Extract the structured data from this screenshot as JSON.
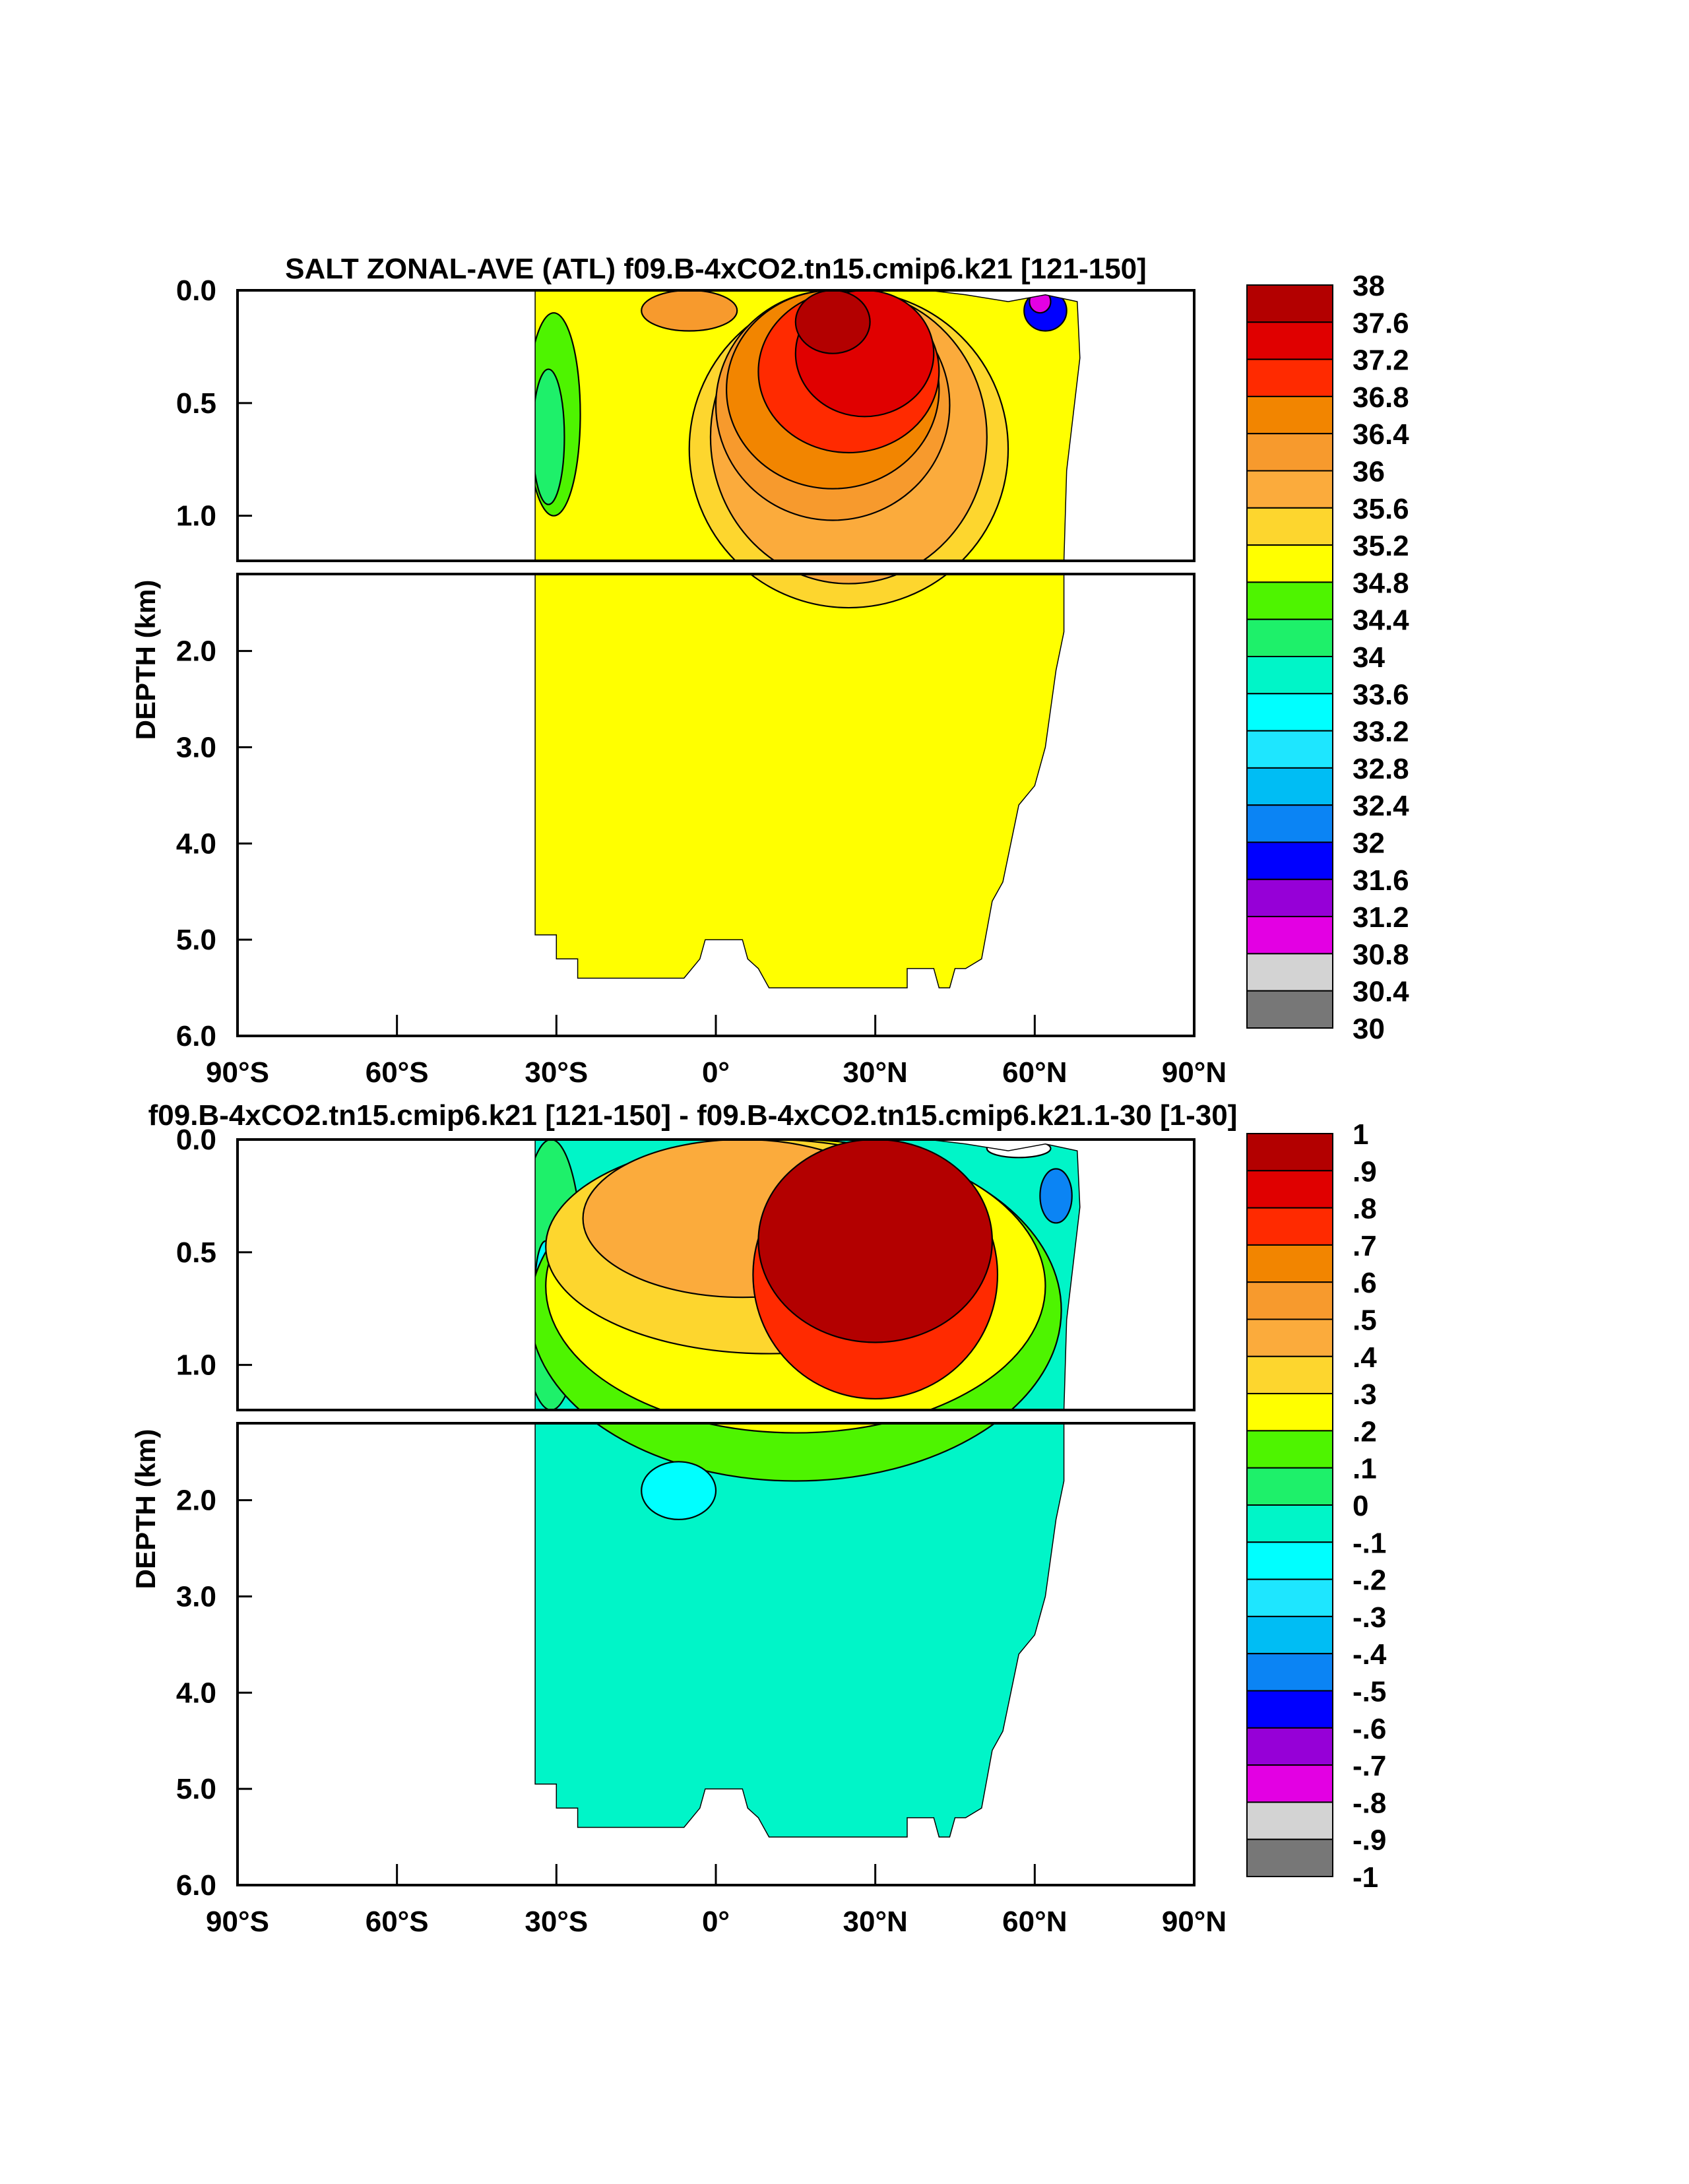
{
  "chart_data": [
    {
      "type": "contour",
      "title": "SALT ZONAL-AVE (ATL) f09.B-4xCO2.tn15.cmip6.k21 [121-150]",
      "xlabel": "",
      "ylabel": "DEPTH (km)",
      "x_ticks": [
        "90°S",
        "60°S",
        "30°S",
        "0°",
        "30°N",
        "60°N",
        "90°N"
      ],
      "upper_y_ticks": [
        "0.0",
        "0.5",
        "1.0"
      ],
      "lower_y_ticks": [
        "2.0",
        "3.0",
        "4.0",
        "5.0",
        "6.0"
      ],
      "xlim": [
        -90,
        90
      ],
      "ylim_km": [
        0,
        6
      ],
      "levels": [
        "38",
        "37.6",
        "37.2",
        "36.8",
        "36.4",
        "36",
        "35.6",
        "35.2",
        "34.8",
        "34.4",
        "34",
        "33.6",
        "33.2",
        "32.8",
        "32.4",
        "32",
        "31.6",
        "31.2",
        "30.8",
        "30.4",
        "30"
      ],
      "colors": [
        "#b30000",
        "#e00000",
        "#ff2a00",
        "#f28500",
        "#f79a2d",
        "#fbab3c",
        "#fdd62e",
        "#ffff00",
        "#4ef400",
        "#1ef06a",
        "#00f5c8",
        "#00ffff",
        "#1ee6ff",
        "#00bdf4",
        "#0b84f4",
        "#0000ff",
        "#9600d7",
        "#e300e3",
        "#d3d3d3",
        "#777777"
      ],
      "fields": {
        "background": "#ffff00",
        "blobs": [
          {
            "lat": -30.5,
            "depth": 0.55,
            "r_lat": 5,
            "r_depth": 0.45,
            "color": "#4ef400"
          },
          {
            "lat": -31.5,
            "depth": 0.65,
            "r_lat": 3,
            "r_depth": 0.3,
            "color": "#1ef06a"
          },
          {
            "lat": 25,
            "depth": 0.55,
            "r_lat": 30,
            "r_depth": 1.0,
            "color": "#fdd62e"
          },
          {
            "lat": 25,
            "depth": 0.5,
            "r_lat": 26,
            "r_depth": 0.8,
            "color": "#fbab3c"
          },
          {
            "lat": 22,
            "depth": 0.42,
            "r_lat": 22,
            "r_depth": 0.6,
            "color": "#f79a2d"
          },
          {
            "lat": 22,
            "depth": 0.38,
            "r_lat": 20,
            "r_depth": 0.5,
            "color": "#f28500"
          },
          {
            "lat": 25,
            "depth": 0.32,
            "r_lat": 17,
            "r_depth": 0.4,
            "color": "#ff2a00"
          },
          {
            "lat": 28,
            "depth": 0.26,
            "r_lat": 13,
            "r_depth": 0.3,
            "color": "#e00000"
          },
          {
            "lat": 22,
            "depth": 0.1,
            "r_lat": 7,
            "r_depth": 0.18,
            "color": "#b30000"
          },
          {
            "lat": -5,
            "depth": 0.06,
            "r_lat": 9,
            "r_depth": 0.12,
            "color": "#f79a2d"
          },
          {
            "lat": 62,
            "depth": 0.08,
            "r_lat": 4,
            "r_depth": 0.1,
            "color": "#0000ff"
          },
          {
            "lat": 61,
            "depth": 0.05,
            "r_lat": 2,
            "r_depth": 0.05,
            "color": "#e300e3"
          }
        ]
      }
    },
    {
      "type": "contour",
      "title": "f09.B-4xCO2.tn15.cmip6.k21 [121-150] - f09.B-4xCO2.tn15.cmip6.k21.1-30 [1-30]",
      "xlabel": "",
      "ylabel": "DEPTH (km)",
      "x_ticks": [
        "90°S",
        "60°S",
        "30°S",
        "0°",
        "30°N",
        "60°N",
        "90°N"
      ],
      "upper_y_ticks": [
        "0.0",
        "0.5",
        "1.0"
      ],
      "lower_y_ticks": [
        "2.0",
        "3.0",
        "4.0",
        "5.0",
        "6.0"
      ],
      "xlim": [
        -90,
        90
      ],
      "ylim_km": [
        0,
        6
      ],
      "levels": [
        "1",
        ".9",
        ".8",
        ".7",
        ".6",
        ".5",
        ".4",
        ".3",
        ".2",
        ".1",
        "0",
        "-.1",
        "-.2",
        "-.3",
        "-.4",
        "-.5",
        "-.6",
        "-.7",
        "-.8",
        "-.9",
        "-1"
      ],
      "colors": [
        "#b30000",
        "#e00000",
        "#ff2a00",
        "#f28500",
        "#f79a2d",
        "#fbab3c",
        "#fdd62e",
        "#ffff00",
        "#4ef400",
        "#1ef06a",
        "#00f5c8",
        "#00ffff",
        "#1ee6ff",
        "#00bdf4",
        "#0b84f4",
        "#0000ff",
        "#9600d7",
        "#e300e3",
        "#d3d3d3",
        "#777777"
      ],
      "fields": {
        "background": "#00f5c8",
        "blobs": [
          {
            "lat": -31,
            "depth": 0.5,
            "r_lat": 6,
            "r_depth": 0.7,
            "color": "#1ef06a"
          },
          {
            "lat": -32,
            "depth": 0.65,
            "r_lat": 2,
            "r_depth": 0.2,
            "color": "#00ffff"
          },
          {
            "lat": 15,
            "depth": 0.7,
            "r_lat": 50,
            "r_depth": 1.1,
            "color": "#4ef400"
          },
          {
            "lat": 15,
            "depth": 0.55,
            "r_lat": 47,
            "r_depth": 0.75,
            "color": "#ffff00"
          },
          {
            "lat": 10,
            "depth": 0.4,
            "r_lat": 42,
            "r_depth": 0.55,
            "color": "#fdd62e"
          },
          {
            "lat": 5,
            "depth": 0.3,
            "r_lat": 30,
            "r_depth": 0.4,
            "color": "#fbab3c"
          },
          {
            "lat": 30,
            "depth": 0.6,
            "r_lat": 23,
            "r_depth": 0.55,
            "color": "#ff2a00"
          },
          {
            "lat": 30,
            "depth": 0.45,
            "r_lat": 22,
            "r_depth": 0.45,
            "color": "#b30000"
          },
          {
            "lat": -7,
            "depth": 1.9,
            "r_lat": 7,
            "r_depth": 0.3,
            "color": "#00ffff"
          },
          {
            "lat": 57,
            "depth": 0.02,
            "r_lat": 6,
            "r_depth": 0.06,
            "color": "#ffffff"
          },
          {
            "lat": 64,
            "depth": 0.25,
            "r_lat": 3,
            "r_depth": 0.12,
            "color": "#0b84f4"
          }
        ]
      }
    }
  ]
}
